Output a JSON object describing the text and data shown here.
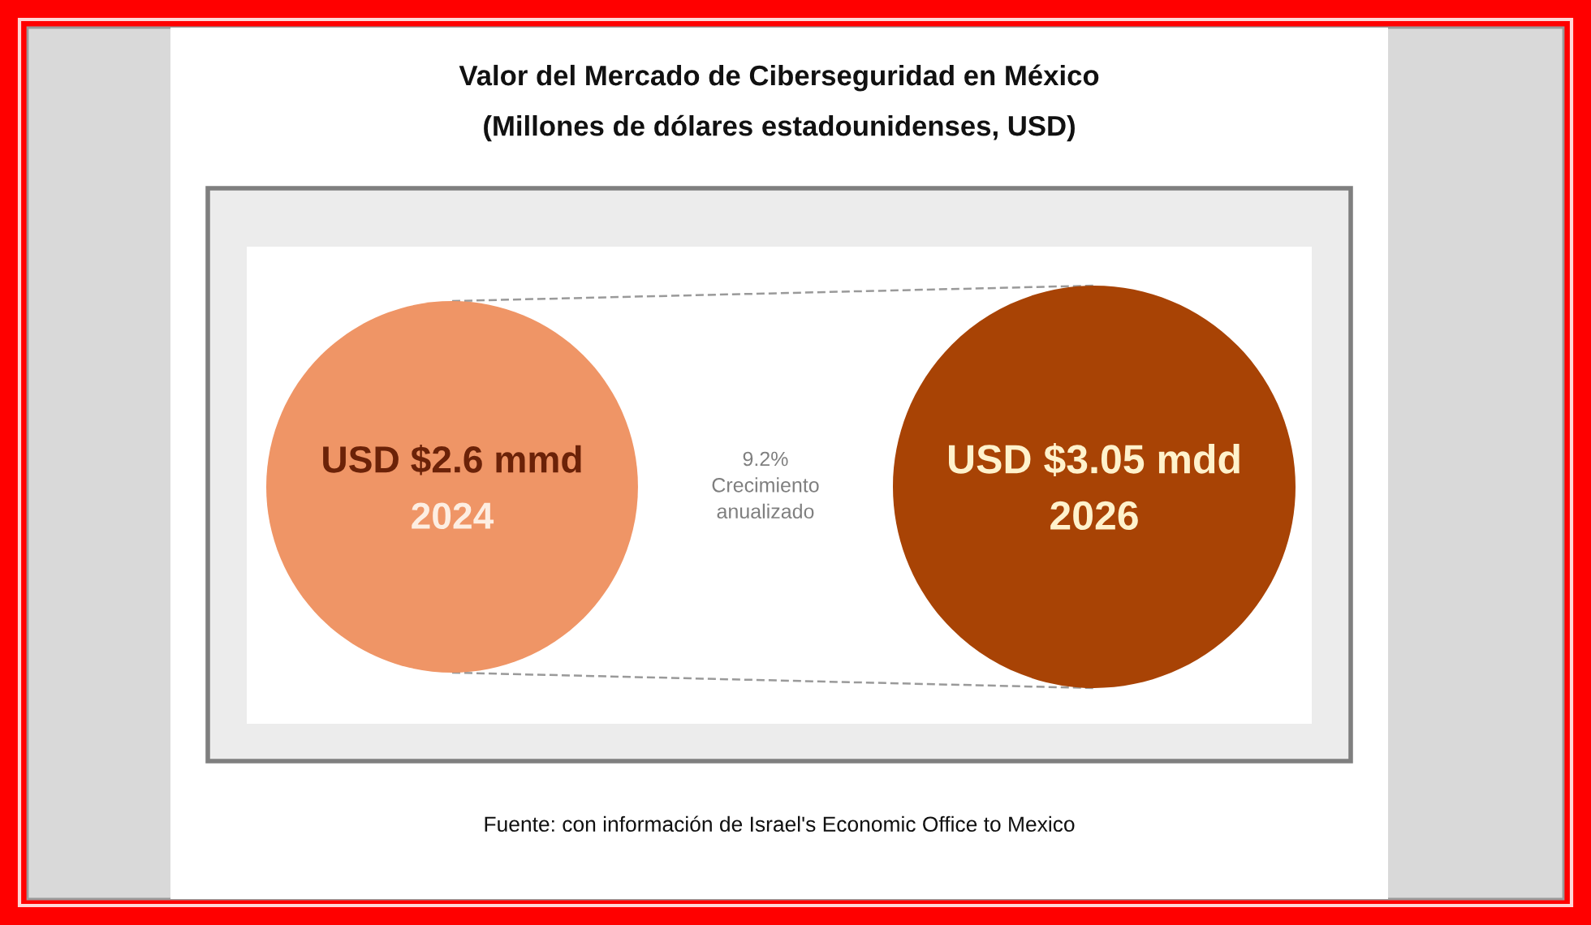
{
  "chart_data": {
    "type": "other",
    "title": "Valor del Mercado de Ciberseguridad en México",
    "subtitle": "(Millones de dólares estadounidenses, USD)",
    "categories": [
      "2024",
      "2026"
    ],
    "values": [
      2.6,
      3.05
    ],
    "value_labels": [
      "USD $2.6 mmd",
      "USD $3.05 mdd"
    ],
    "colors": [
      "#ef9566",
      "#a84305"
    ],
    "annotations": [
      "9.2%\nCrecimiento\nanualizado",
      "Fuente: con información de Israel's Economic Office to Mexico"
    ]
  }
}
